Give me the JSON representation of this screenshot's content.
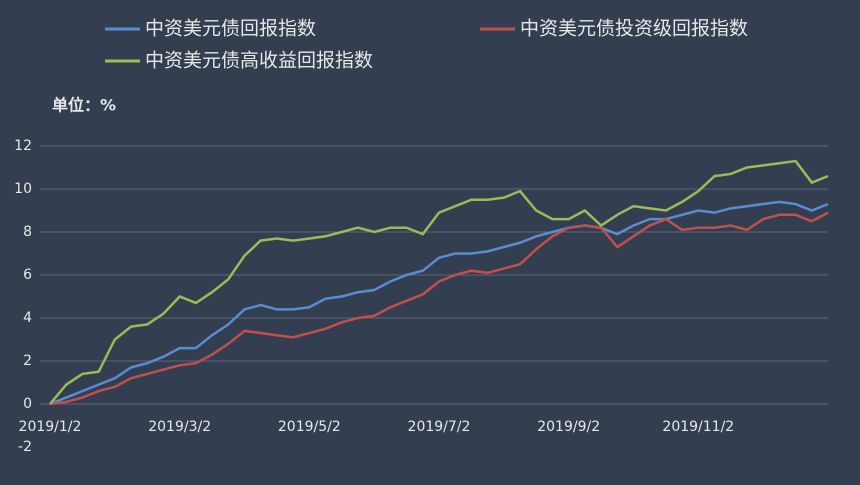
{
  "chart_data": {
    "type": "line",
    "unit_label": "单位：%",
    "legend": "top",
    "categories": [
      "2019/1/2",
      null,
      null,
      null,
      null,
      null,
      null,
      null,
      "2019/3/2",
      null,
      null,
      null,
      null,
      null,
      null,
      null,
      "2019/5/2",
      null,
      null,
      null,
      null,
      null,
      null,
      null,
      "2019/7/2",
      null,
      null,
      null,
      null,
      null,
      null,
      null,
      "2019/9/2",
      null,
      null,
      null,
      null,
      null,
      null,
      null,
      "2019/11/2",
      null,
      null,
      null,
      null,
      null,
      null,
      null,
      null
    ],
    "ylim": [
      -2,
      12
    ],
    "yticks": [
      -2,
      0,
      2,
      4,
      6,
      8,
      10,
      12
    ],
    "grid": true,
    "series": [
      {
        "name": "中资美元债回报指数",
        "color": "#5b8bd0",
        "values": [
          0,
          0.3,
          0.6,
          0.9,
          1.2,
          1.7,
          1.9,
          2.2,
          2.6,
          2.6,
          3.2,
          3.7,
          4.4,
          4.6,
          4.4,
          4.4,
          4.5,
          4.9,
          5.0,
          5.2,
          5.3,
          5.7,
          6.0,
          6.2,
          6.8,
          7.0,
          7.0,
          7.1,
          7.3,
          7.5,
          7.8,
          8.0,
          8.2,
          8.3,
          8.2,
          7.9,
          8.3,
          8.6,
          8.6,
          8.8,
          9.0,
          8.9,
          9.1,
          9.2,
          9.3,
          9.4,
          9.3,
          9.0,
          9.3
        ]
      },
      {
        "name": "中资美元债投资级回报指数",
        "color": "#c0504d",
        "values": [
          0,
          0.1,
          0.3,
          0.6,
          0.8,
          1.2,
          1.4,
          1.6,
          1.8,
          1.9,
          2.3,
          2.8,
          3.4,
          3.3,
          3.2,
          3.1,
          3.3,
          3.5,
          3.8,
          4.0,
          4.1,
          4.5,
          4.8,
          5.1,
          5.7,
          6.0,
          6.2,
          6.1,
          6.3,
          6.5,
          7.2,
          7.8,
          8.2,
          8.3,
          8.2,
          7.3,
          7.8,
          8.3,
          8.6,
          8.1,
          8.2,
          8.2,
          8.3,
          8.1,
          8.6,
          8.8,
          8.8,
          8.5,
          8.9
        ]
      },
      {
        "name": "中资美元债高收益回报指数",
        "color": "#9bbb59",
        "values": [
          0,
          0.9,
          1.4,
          1.5,
          3.0,
          3.6,
          3.7,
          4.2,
          5.0,
          4.7,
          5.2,
          5.8,
          6.9,
          7.6,
          7.7,
          7.6,
          7.7,
          7.8,
          8.0,
          8.2,
          8.0,
          8.2,
          8.2,
          7.9,
          8.9,
          9.2,
          9.5,
          9.5,
          9.6,
          9.9,
          9.0,
          8.6,
          8.6,
          9.0,
          8.3,
          8.8,
          9.2,
          9.1,
          9.0,
          9.4,
          9.9,
          10.6,
          10.7,
          11.0,
          11.1,
          11.2,
          11.3,
          10.3,
          10.6
        ]
      }
    ]
  }
}
